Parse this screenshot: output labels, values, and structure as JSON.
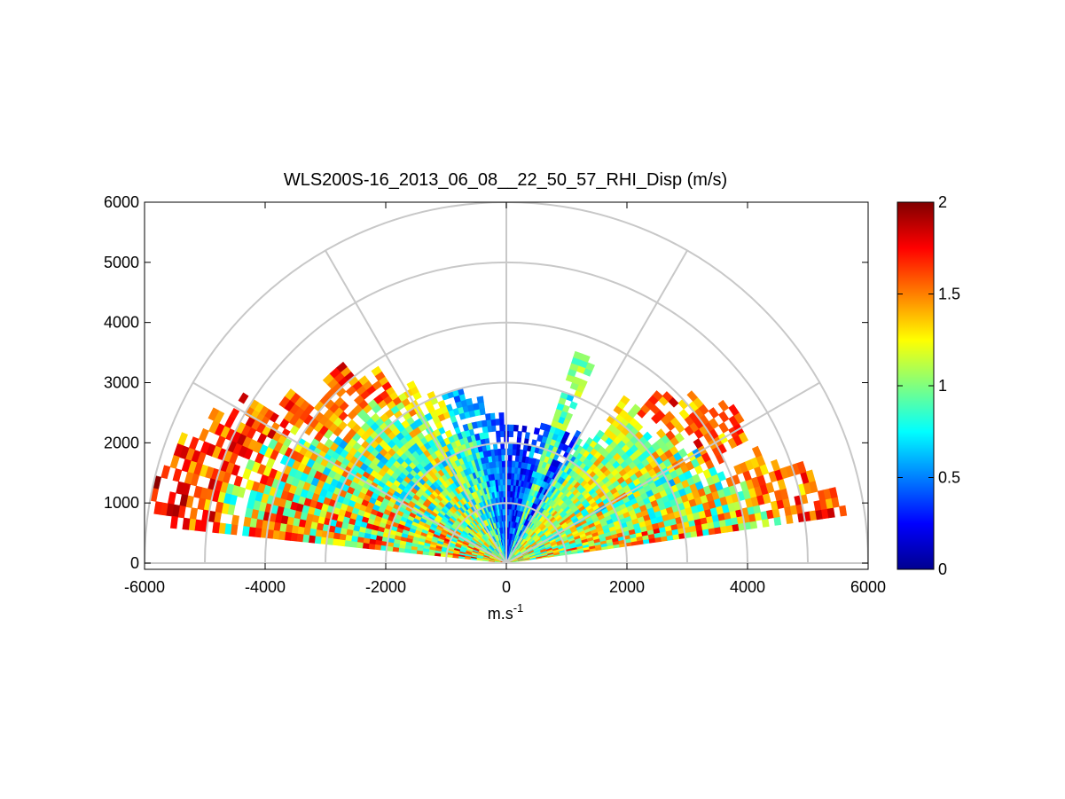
{
  "chart_data": {
    "type": "heatmap",
    "subtype": "polar RHI scan (range-height indicator)",
    "title": "WLS200S-16_2013_06_08__22_50_57_RHI_Disp (m/s)",
    "xlabel": "m.s",
    "xlabel_superscript": "-1",
    "ylabel": "",
    "xlim": [
      -6000,
      6000
    ],
    "ylim": [
      0,
      6000
    ],
    "xticks": [
      -6000,
      -4000,
      -2000,
      0,
      2000,
      4000,
      6000
    ],
    "yticks": [
      0,
      1000,
      2000,
      3000,
      4000,
      5000,
      6000
    ],
    "range_rings": [
      1000,
      2000,
      3000,
      4000,
      5000,
      6000
    ],
    "radial_lines_deg": [
      30,
      60,
      90,
      120,
      150
    ],
    "grid": true,
    "colormap": "jet",
    "colorbar": {
      "min": 0,
      "max": 2,
      "ticks": [
        0,
        0.5,
        1,
        1.5,
        2
      ],
      "placement": "right"
    },
    "sectors": [
      {
        "elevation_deg": [
          8,
          13
        ],
        "max_range": 5700,
        "mean_disp": 1.25,
        "spread": 0.55,
        "outer_disp": 1.9
      },
      {
        "elevation_deg": [
          13,
          19
        ],
        "max_range": 5300,
        "mean_disp": 1.15,
        "spread": 0.5,
        "outer_disp": 1.8
      },
      {
        "elevation_deg": [
          19,
          25
        ],
        "max_range": 4800,
        "mean_disp": 1.1,
        "spread": 0.45,
        "outer_disp": 1.75
      },
      {
        "elevation_deg": [
          25,
          31
        ],
        "max_range": 4500,
        "mean_disp": 1.05,
        "spread": 0.5,
        "outer_disp": 1.85
      },
      {
        "elevation_deg": [
          31,
          37
        ],
        "max_range": 4600,
        "mean_disp": 1.1,
        "spread": 0.45,
        "outer_disp": 1.95
      },
      {
        "elevation_deg": [
          37,
          43
        ],
        "max_range": 4200,
        "mean_disp": 1.1,
        "spread": 0.35,
        "outer_disp": 1.7
      },
      {
        "elevation_deg": [
          43,
          49
        ],
        "max_range": 3900,
        "mean_disp": 1.15,
        "spread": 0.35,
        "outer_disp": 1.95
      },
      {
        "elevation_deg": [
          49,
          55
        ],
        "max_range": 3400,
        "mean_disp": 1.05,
        "spread": 0.3,
        "outer_disp": 1.3
      },
      {
        "elevation_deg": [
          55,
          60
        ],
        "max_range": 2500,
        "mean_disp": 0.85,
        "spread": 0.35,
        "outer_disp": 0.9
      },
      {
        "elevation_deg": [
          60,
          66
        ],
        "max_range": 2500,
        "mean_disp": 0.4,
        "spread": 0.25,
        "outer_disp": 0.3
      },
      {
        "elevation_deg": [
          66,
          72
        ],
        "max_range": 3700,
        "mean_disp": 0.9,
        "spread": 0.3,
        "outer_disp": 1.1
      },
      {
        "elevation_deg": [
          72,
          78
        ],
        "max_range": 2400,
        "mean_disp": 0.45,
        "spread": 0.25,
        "outer_disp": 0.3
      },
      {
        "elevation_deg": [
          78,
          85
        ],
        "max_range": 2300,
        "mean_disp": 0.35,
        "spread": 0.2,
        "outer_disp": 0.2
      },
      {
        "elevation_deg": [
          85,
          91
        ],
        "max_range": 2300,
        "mean_disp": 0.35,
        "spread": 0.2,
        "outer_disp": 0.3
      },
      {
        "elevation_deg": [
          91,
          98
        ],
        "max_range": 2500,
        "mean_disp": 0.45,
        "spread": 0.2,
        "outer_disp": 0.35
      },
      {
        "elevation_deg": [
          98,
          104
        ],
        "max_range": 2800,
        "mean_disp": 0.55,
        "spread": 0.25,
        "outer_disp": 0.6
      },
      {
        "elevation_deg": [
          104,
          111
        ],
        "max_range": 3000,
        "mean_disp": 0.8,
        "spread": 0.35,
        "outer_disp": 0.5
      },
      {
        "elevation_deg": [
          111,
          117
        ],
        "max_range": 3100,
        "mean_disp": 0.9,
        "spread": 0.35,
        "outer_disp": 1.4
      },
      {
        "elevation_deg": [
          117,
          123
        ],
        "max_range": 3400,
        "mean_disp": 0.95,
        "spread": 0.4,
        "outer_disp": 1.5
      },
      {
        "elevation_deg": [
          123,
          129
        ],
        "max_range": 3900,
        "mean_disp": 1.0,
        "spread": 0.45,
        "outer_disp": 1.8
      },
      {
        "elevation_deg": [
          129,
          135
        ],
        "max_range": 4300,
        "mean_disp": 1.0,
        "spread": 0.45,
        "outer_disp": 1.95
      },
      {
        "elevation_deg": [
          135,
          141
        ],
        "max_range": 4100,
        "mean_disp": 1.0,
        "spread": 0.45,
        "outer_disp": 1.8
      },
      {
        "elevation_deg": [
          141,
          147
        ],
        "max_range": 4600,
        "mean_disp": 1.05,
        "spread": 0.5,
        "outer_disp": 1.9
      },
      {
        "elevation_deg": [
          147,
          152
        ],
        "max_range": 5200,
        "mean_disp": 1.1,
        "spread": 0.5,
        "outer_disp": 1.95
      },
      {
        "elevation_deg": [
          152,
          158
        ],
        "max_range": 5500,
        "mean_disp": 1.15,
        "spread": 0.55,
        "outer_disp": 1.95
      },
      {
        "elevation_deg": [
          158,
          164
        ],
        "max_range": 5800,
        "mean_disp": 1.2,
        "spread": 0.55,
        "outer_disp": 1.95
      },
      {
        "elevation_deg": [
          164,
          170
        ],
        "max_range": 6000,
        "mean_disp": 1.25,
        "spread": 0.6,
        "outer_disp": 1.95
      },
      {
        "elevation_deg": [
          170,
          174
        ],
        "max_range": 6000,
        "mean_disp": 1.3,
        "spread": 0.55,
        "outer_disp": 1.95
      }
    ],
    "range_gate_m": 100
  }
}
